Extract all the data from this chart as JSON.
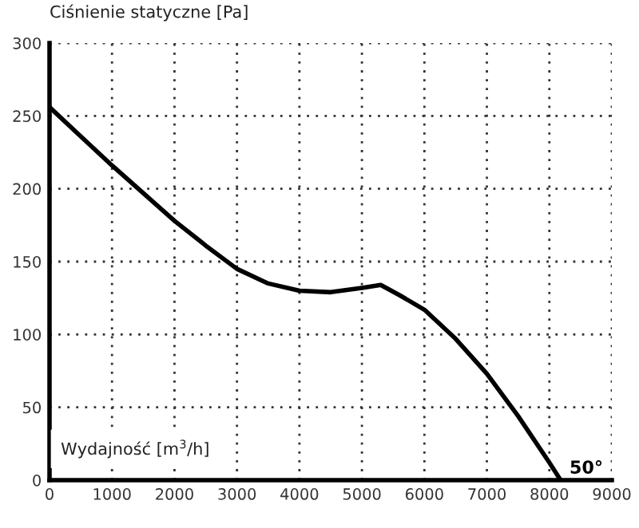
{
  "chart_data": {
    "type": "line",
    "ylabel": "Ciśnienie statyczne [Pa]",
    "xlabel": "Wydajność [m$^{3}$/h]",
    "x": [
      0,
      500,
      1000,
      1500,
      2000,
      2500,
      3000,
      3500,
      4000,
      4500,
      5000,
      5300,
      5600,
      6000,
      6500,
      7000,
      7500,
      8000,
      8180
    ],
    "series": [
      {
        "color": "#000000",
        "values": [
          256,
          236,
          216,
          197,
          178,
          161,
          145,
          135,
          130,
          129,
          132,
          134,
          127,
          117,
          97,
          73,
          44,
          12,
          0
        ]
      }
    ],
    "annotations": [
      {
        "text": "50°",
        "x": 8180,
        "y": 0
      }
    ],
    "xlim": [
      0,
      9000
    ],
    "ylim": [
      0,
      300
    ],
    "xticks": [
      0,
      1000,
      2000,
      3000,
      4000,
      5000,
      6000,
      7000,
      8000,
      9000
    ],
    "yticks": [
      0,
      50,
      100,
      150,
      200,
      250,
      300
    ],
    "grid": true,
    "legend": false,
    "marker": "none",
    "line_style": "solid"
  }
}
